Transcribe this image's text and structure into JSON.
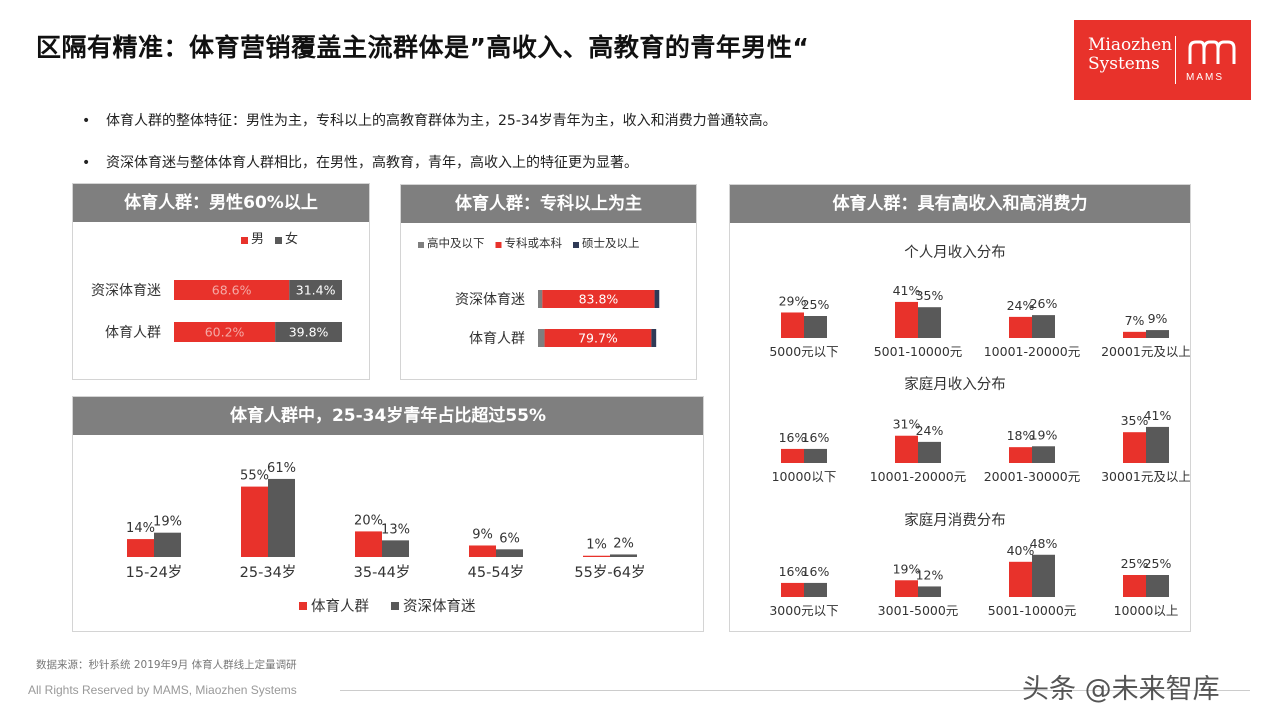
{
  "page": {
    "title": "区隔有精准：体育营销覆盖主流群体是”高收入、高教育的青年男性“",
    "logo_text_1": "Miaozhen",
    "logo_text_2": "Systems",
    "logo_mark_text": "MAMS",
    "logo_color": "#e8322b",
    "bullets": [
      "体育人群的整体特征：男性为主，专科以上的高教育群体为主，25-34岁青年为主，收入和消费力普通较高。",
      "资深体育迷与整体体育人群相比，在男性，高教育，青年，高收入上的特征更为显著。"
    ],
    "bullet_marker": "•",
    "footer_source": "数据来源：秒针系统  2019年9月  体育人群线上定量调研",
    "footer_copyright": "All Rights Reserved by MAMS, Miaozhen Systems",
    "watermark": "头条 @未来智库"
  },
  "colors": {
    "red": "#e8322b",
    "gray": "#595959",
    "lightgray": "#7f7f7f",
    "navy": "#2f3a56",
    "header": "#7f7f7f"
  },
  "chart_data": [
    {
      "id": "gender",
      "type": "bar",
      "title": "体育人群：男性60%以上",
      "stacked": true,
      "orientation": "horizontal",
      "categories": [
        "资深体育迷",
        "体育人群"
      ],
      "series": [
        {
          "name": "男",
          "values": [
            68.6,
            60.2
          ],
          "labels": [
            "68.6%",
            "60.2%"
          ],
          "color": "#e8322b"
        },
        {
          "name": "女",
          "values": [
            31.4,
            39.8
          ],
          "labels": [
            "31.4%",
            "39.8%"
          ],
          "color": "#595959"
        }
      ],
      "legend": "top"
    },
    {
      "id": "education",
      "type": "bar",
      "title": "体育人群：专科以上为主",
      "stacked": true,
      "orientation": "horizontal",
      "categories": [
        "资深体育迷",
        "体育人群"
      ],
      "series": [
        {
          "name": "高中及以下",
          "values": [
            3.2,
            4.9
          ],
          "labels": [
            "",
            ""
          ],
          "color": "#7f7f7f"
        },
        {
          "name": "专科或本科",
          "values": [
            83.8,
            79.7
          ],
          "labels": [
            "83.8%",
            "79.7%"
          ],
          "color": "#e8322b"
        },
        {
          "name": "硕士及以上",
          "values": [
            3.5,
            3.6
          ],
          "labels": [
            "",
            ""
          ],
          "color": "#2f3a56"
        }
      ],
      "legend": "top"
    },
    {
      "id": "age",
      "type": "bar",
      "title": "体育人群中，25-34岁青年占比超过55%",
      "categories": [
        "15-24岁",
        "25-34岁",
        "35-44岁",
        "45-54岁",
        "55岁-64岁"
      ],
      "series": [
        {
          "name": "体育人群",
          "values": [
            14,
            55,
            20,
            9,
            1
          ],
          "labels": [
            "14%",
            "55%",
            "20%",
            "9%",
            "1%"
          ],
          "color": "#e8322b"
        },
        {
          "name": "资深体育迷",
          "values": [
            19,
            61,
            13,
            6,
            2
          ],
          "labels": [
            "19%",
            "61%",
            "13%",
            "6%",
            "2%"
          ],
          "color": "#595959"
        }
      ],
      "legend": "bottom"
    },
    {
      "id": "income",
      "type": "bar",
      "panel_title": "体育人群：具有高收入和高消费力",
      "subcharts": [
        {
          "title": "个人月收入分布",
          "categories": [
            "5000元以下",
            "5001-10000元",
            "10001-20000元",
            "20001元及以上"
          ],
          "series": [
            {
              "values": [
                29,
                41,
                24,
                7
              ],
              "labels": [
                "29%",
                "41%",
                "24%",
                "7%"
              ],
              "color": "#e8322b"
            },
            {
              "values": [
                25,
                35,
                26,
                9
              ],
              "labels": [
                "25%",
                "35%",
                "26%",
                "9%"
              ],
              "color": "#595959"
            }
          ]
        },
        {
          "title": "家庭月收入分布",
          "categories": [
            "10000以下",
            "10001-20000元",
            "20001-30000元",
            "30001元及以上"
          ],
          "series": [
            {
              "values": [
                16,
                31,
                18,
                35
              ],
              "labels": [
                "16%",
                "31%",
                "18%",
                "35%"
              ],
              "color": "#e8322b"
            },
            {
              "values": [
                16,
                24,
                19,
                41
              ],
              "labels": [
                "16%",
                "24%",
                "19%",
                "41%"
              ],
              "color": "#595959"
            }
          ]
        },
        {
          "title": "家庭月消费分布",
          "categories": [
            "3000元以下",
            "3001-5000元",
            "5001-10000元",
            "10000以上"
          ],
          "series": [
            {
              "values": [
                16,
                19,
                40,
                25
              ],
              "labels": [
                "16%",
                "19%",
                "40%",
                "25%"
              ],
              "color": "#e8322b"
            },
            {
              "values": [
                16,
                12,
                48,
                25
              ],
              "labels": [
                "16%",
                "12%",
                "48%",
                "25%"
              ],
              "color": "#595959"
            }
          ]
        }
      ]
    }
  ]
}
